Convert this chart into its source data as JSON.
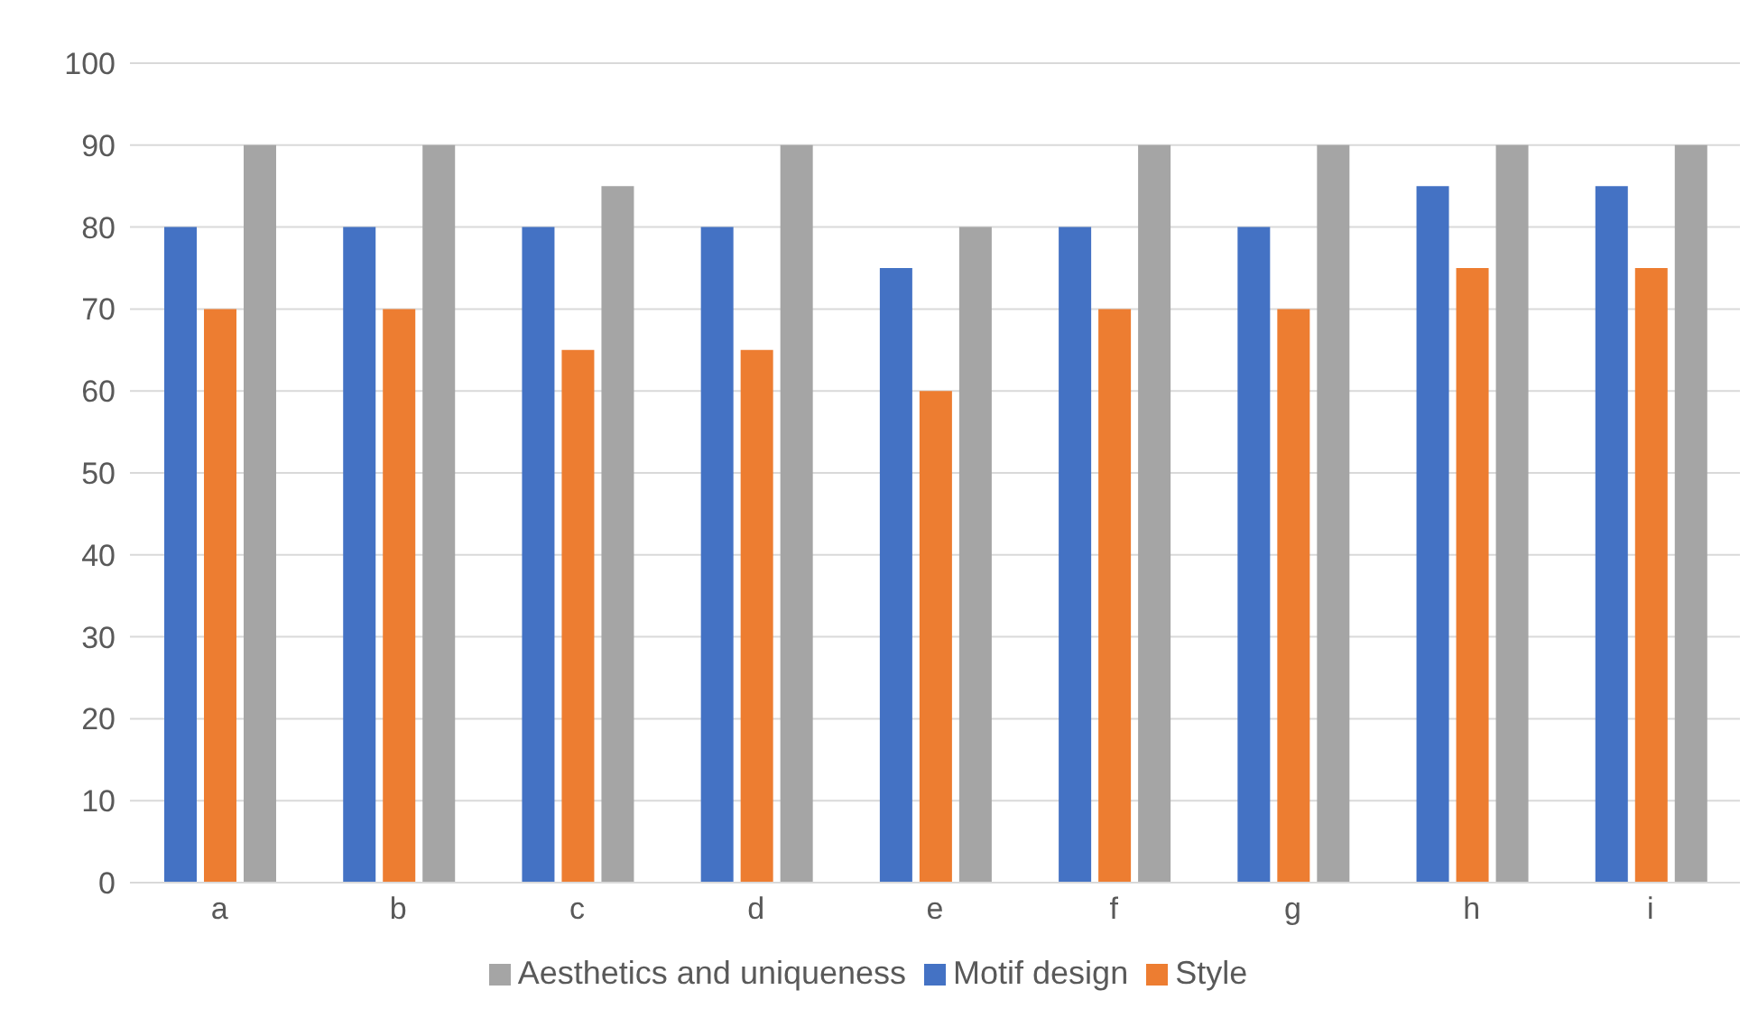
{
  "chart_data": {
    "type": "bar",
    "categories": [
      "a",
      "b",
      "c",
      "d",
      "e",
      "f",
      "g",
      "h",
      "i"
    ],
    "series": [
      {
        "name": "Motif design",
        "color": "#4472c4",
        "values": [
          80,
          80,
          80,
          80,
          75,
          80,
          80,
          85,
          85
        ]
      },
      {
        "name": "Style",
        "color": "#ed7d31",
        "values": [
          70,
          70,
          65,
          65,
          60,
          70,
          70,
          75,
          75
        ]
      },
      {
        "name": "Aesthetics and uniqueness",
        "color": "#a5a5a5",
        "values": [
          90,
          90,
          85,
          90,
          80,
          90,
          90,
          90,
          90
        ]
      }
    ],
    "ylim": [
      0,
      100
    ],
    "yticks": [
      0,
      10,
      20,
      30,
      40,
      50,
      60,
      70,
      80,
      90,
      100
    ],
    "grid": "y",
    "legend": "bottom"
  }
}
